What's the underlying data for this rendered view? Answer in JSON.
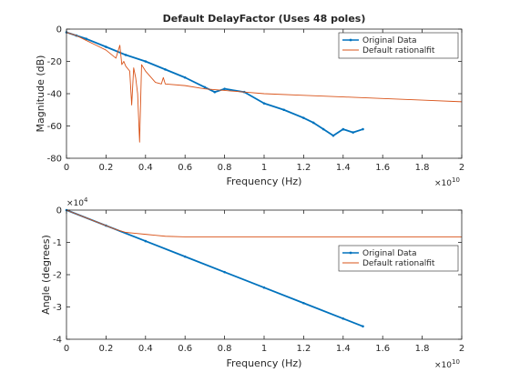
{
  "figure": {
    "background": "#ffffff"
  },
  "chart_data": [
    {
      "type": "line",
      "title": "Default DelayFactor (Uses 48 poles)",
      "xlabel": "Frequency (Hz)",
      "ylabel": "Magnitude (dB)",
      "xlim": [
        0,
        20000000000
      ],
      "ylim": [
        -80,
        0
      ],
      "x_ticks": [
        0,
        0.2,
        0.4,
        0.6,
        0.8,
        1,
        1.2,
        1.4,
        1.6,
        1.8,
        2
      ],
      "x_tick_labels": [
        "0",
        "0.2",
        "0.4",
        "0.6",
        "0.8",
        "1",
        "1.2",
        "1.4",
        "1.6",
        "1.8",
        "2"
      ],
      "x_exponent_label": "×10",
      "x_exponent_power": "10",
      "y_ticks": [
        -80,
        -60,
        -40,
        -20,
        0
      ],
      "y_tick_labels": [
        "-80",
        "-60",
        "-40",
        "-20",
        "0"
      ],
      "grid": false,
      "legend_position": "top-right",
      "series": [
        {
          "name": "Original Data",
          "color": "#0072BD",
          "marker": "dot",
          "x": [
            0,
            0.05,
            0.1,
            0.2,
            0.3,
            0.4,
            0.5,
            0.6,
            0.7,
            0.75,
            0.8,
            0.9,
            1.0,
            1.1,
            1.2,
            1.25,
            1.3,
            1.35,
            1.4,
            1.45,
            1.5
          ],
          "y": [
            -2,
            -4,
            -6,
            -11,
            -16,
            -20,
            -25,
            -30,
            -36,
            -39,
            -37,
            -39,
            -46,
            -50,
            -55,
            -58,
            -62,
            -66,
            -62,
            -64,
            -62
          ]
        },
        {
          "name": "Default rationalfit",
          "color": "#D95319",
          "marker": "none",
          "x": [
            0,
            0.05,
            0.1,
            0.15,
            0.2,
            0.25,
            0.27,
            0.28,
            0.29,
            0.3,
            0.32,
            0.33,
            0.34,
            0.35,
            0.36,
            0.37,
            0.38,
            0.4,
            0.45,
            0.48,
            0.49,
            0.5,
            0.6,
            0.7,
            0.8,
            0.9,
            1.0,
            1.2,
            1.4,
            1.6,
            1.8,
            2.0
          ],
          "y": [
            -2,
            -4,
            -7,
            -10,
            -13,
            -18,
            -10,
            -22,
            -20,
            -23,
            -26,
            -47,
            -24,
            -30,
            -40,
            -70,
            -22,
            -26,
            -33,
            -34,
            -30,
            -34,
            -35,
            -37,
            -38,
            -39,
            -40,
            -41,
            -42,
            -43,
            -44,
            -45
          ]
        }
      ]
    },
    {
      "type": "line",
      "title": "",
      "xlabel": "Frequency (Hz)",
      "ylabel": "Angle (degrees)",
      "xlim": [
        0,
        20000000000
      ],
      "ylim": [
        -40000,
        0
      ],
      "x_ticks": [
        0,
        0.2,
        0.4,
        0.6,
        0.8,
        1,
        1.2,
        1.4,
        1.6,
        1.8,
        2
      ],
      "x_tick_labels": [
        "0",
        "0.2",
        "0.4",
        "0.6",
        "0.8",
        "1",
        "1.2",
        "1.4",
        "1.6",
        "1.8",
        "2"
      ],
      "x_exponent_label": "×10",
      "x_exponent_power": "10",
      "y_ticks": [
        -4,
        -3,
        -2,
        -1,
        0
      ],
      "y_tick_labels": [
        "-4",
        "-3",
        "-2",
        "-1",
        "0"
      ],
      "y_exponent_label": "×10",
      "y_exponent_power": "4",
      "grid": false,
      "legend_position": "right",
      "series": [
        {
          "name": "Original Data",
          "color": "#0072BD",
          "marker": "dot",
          "x": [
            0,
            0.2,
            0.4,
            0.6,
            0.8,
            1.0,
            1.2,
            1.4,
            1.5
          ],
          "y": [
            0,
            -4800,
            -9600,
            -14400,
            -19200,
            -24000,
            -28800,
            -33600,
            -36000
          ]
        },
        {
          "name": "Default rationalfit",
          "color": "#D95319",
          "marker": "none",
          "x": [
            0,
            0.1,
            0.2,
            0.25,
            0.3,
            0.35,
            0.4,
            0.45,
            0.5,
            0.6,
            0.8,
            1.0,
            1.5,
            2.0
          ],
          "y": [
            0,
            -2400,
            -4800,
            -6000,
            -6900,
            -7200,
            -7500,
            -7800,
            -8100,
            -8300,
            -8300,
            -8300,
            -8300,
            -8300
          ]
        }
      ]
    }
  ]
}
